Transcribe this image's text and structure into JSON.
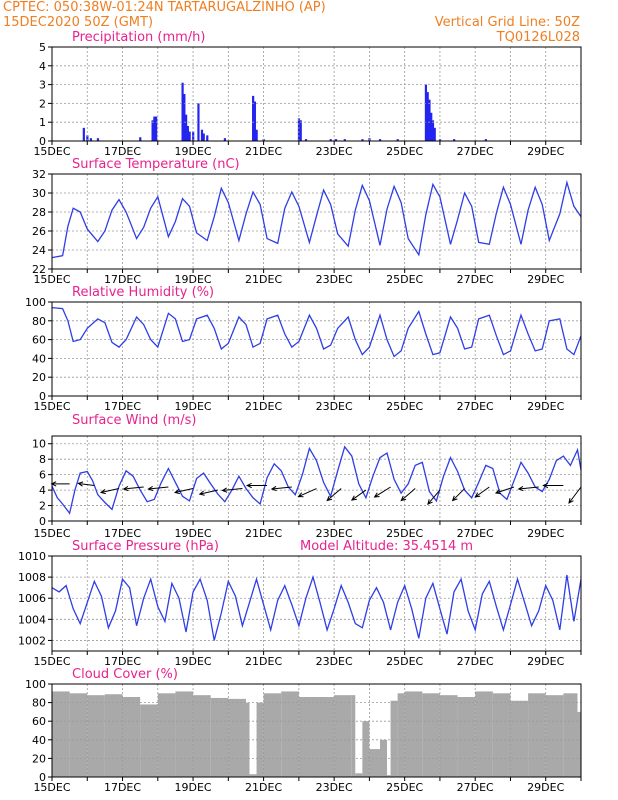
{
  "header": {
    "left_line1": "CPTEC:  050:38W-01:24N  TARTARUGALZINHO (AP)",
    "left_line2": "15DEC2020 50Z (GMT)",
    "right_line2": "Vertical Grid Line: 50Z",
    "right_line3": "TQ0126L028"
  },
  "x_axis": {
    "start_day": 15,
    "end_day": 30,
    "ticks": [
      {
        "day": 15,
        "label": "15DEC"
      },
      {
        "day": 17,
        "label": "17DEC"
      },
      {
        "day": 19,
        "label": "19DEC"
      },
      {
        "day": 21,
        "label": "21DEC"
      },
      {
        "day": 23,
        "label": "23DEC"
      },
      {
        "day": 25,
        "label": "25DEC"
      },
      {
        "day": 27,
        "label": "27DEC"
      },
      {
        "day": 29,
        "label": "29DEC"
      }
    ]
  },
  "chart_data": [
    {
      "id": "precip",
      "type": "bar",
      "title": "Precipitation (mm/h)",
      "ylim": [
        0,
        5
      ],
      "yticks": [
        0,
        1,
        2,
        3,
        4,
        5
      ],
      "grid": true,
      "series": [
        {
          "color": "#2424f0",
          "x": [
            15.9,
            16.0,
            16.1,
            16.3,
            17.5,
            17.85,
            17.9,
            17.95,
            18.7,
            18.75,
            18.8,
            18.85,
            18.9,
            19.0,
            19.15,
            19.25,
            19.3,
            19.4,
            19.9,
            20.7,
            20.75,
            20.8,
            21.0,
            22.0,
            22.05,
            22.2,
            22.9,
            23.05,
            23.3,
            23.8,
            24.0,
            24.3,
            24.8,
            25.6,
            25.65,
            25.7,
            25.75,
            25.8,
            25.85,
            26.0,
            26.4,
            27.3
          ],
          "values": [
            0.7,
            0.3,
            0.15,
            0.15,
            0.2,
            1.1,
            1.3,
            1.3,
            3.1,
            2.5,
            1.4,
            0.8,
            0.5,
            0.5,
            2.0,
            0.6,
            0.4,
            0.3,
            0.15,
            2.4,
            2.1,
            0.6,
            0.1,
            1.2,
            1.1,
            0.1,
            0.1,
            0.1,
            0.1,
            0.1,
            0.15,
            0.1,
            0.1,
            3.0,
            2.6,
            2.2,
            1.5,
            1.1,
            0.7,
            0.1,
            0.1,
            0.1
          ]
        }
      ]
    },
    {
      "id": "temp",
      "type": "line",
      "title": "Surface Temperature (nC)",
      "ylim": [
        22,
        32
      ],
      "yticks": [
        22,
        24,
        26,
        28,
        30,
        32
      ],
      "grid": true,
      "series": [
        {
          "color": "#2f3ee6",
          "x": [
            15.0,
            15.3,
            15.45,
            15.6,
            15.8,
            16.0,
            16.3,
            16.5,
            16.7,
            16.9,
            17.1,
            17.4,
            17.6,
            17.8,
            18.0,
            18.3,
            18.5,
            18.7,
            18.9,
            19.1,
            19.4,
            19.6,
            19.8,
            20.0,
            20.3,
            20.5,
            20.7,
            20.9,
            21.1,
            21.4,
            21.6,
            21.8,
            22.0,
            22.3,
            22.5,
            22.7,
            22.9,
            23.1,
            23.4,
            23.6,
            23.8,
            24.0,
            24.3,
            24.5,
            24.7,
            24.9,
            25.1,
            25.4,
            25.6,
            25.8,
            26.0,
            26.3,
            26.5,
            26.7,
            26.9,
            27.1,
            27.4,
            27.6,
            27.8,
            28.0,
            28.3,
            28.5,
            28.7,
            28.9,
            29.1,
            29.4,
            29.6,
            29.8,
            30.0
          ],
          "values": [
            23.2,
            23.4,
            26.5,
            28.4,
            28.0,
            26.2,
            24.9,
            26.0,
            28.2,
            29.3,
            28.0,
            25.2,
            26.4,
            28.4,
            29.6,
            25.4,
            27.0,
            29.4,
            28.6,
            25.8,
            25.0,
            27.5,
            30.5,
            29.0,
            25.0,
            27.8,
            30.1,
            28.8,
            25.2,
            24.7,
            28.4,
            30.1,
            28.6,
            24.8,
            27.6,
            30.3,
            28.8,
            25.7,
            24.4,
            28.2,
            30.8,
            29.2,
            24.5,
            28.3,
            30.7,
            29.0,
            25.2,
            23.5,
            27.7,
            30.9,
            29.6,
            24.6,
            27.2,
            30.0,
            28.6,
            24.8,
            24.6,
            27.9,
            30.6,
            28.8,
            24.6,
            28.2,
            30.6,
            28.8,
            25.0,
            27.8,
            31.1,
            28.6,
            27.5
          ]
        }
      ]
    },
    {
      "id": "rh",
      "type": "line",
      "title": "Relative Humidity (%)",
      "ylim": [
        0,
        100
      ],
      "yticks": [
        0,
        20,
        40,
        60,
        80,
        100
      ],
      "grid": true,
      "series": [
        {
          "color": "#2f3ee6",
          "x": [
            15.0,
            15.3,
            15.45,
            15.6,
            15.8,
            16.0,
            16.3,
            16.5,
            16.7,
            16.9,
            17.1,
            17.4,
            17.6,
            17.8,
            18.0,
            18.3,
            18.5,
            18.7,
            18.9,
            19.1,
            19.4,
            19.6,
            19.8,
            20.0,
            20.3,
            20.5,
            20.7,
            20.9,
            21.1,
            21.4,
            21.6,
            21.8,
            22.0,
            22.3,
            22.5,
            22.7,
            22.9,
            23.1,
            23.4,
            23.6,
            23.8,
            24.0,
            24.3,
            24.5,
            24.7,
            24.9,
            25.1,
            25.4,
            25.6,
            25.8,
            26.0,
            26.3,
            26.5,
            26.7,
            26.9,
            27.1,
            27.4,
            27.6,
            27.8,
            28.0,
            28.3,
            28.5,
            28.7,
            28.9,
            29.1,
            29.4,
            29.6,
            29.8,
            30.0
          ],
          "values": [
            94,
            93,
            80,
            58,
            60,
            72,
            82,
            78,
            57,
            52,
            60,
            84,
            76,
            60,
            52,
            88,
            82,
            58,
            60,
            82,
            86,
            72,
            50,
            56,
            84,
            76,
            52,
            56,
            82,
            86,
            66,
            52,
            58,
            86,
            72,
            50,
            54,
            72,
            84,
            60,
            44,
            52,
            86,
            60,
            42,
            48,
            72,
            90,
            66,
            44,
            46,
            84,
            72,
            50,
            52,
            82,
            86,
            64,
            44,
            48,
            86,
            66,
            48,
            50,
            80,
            82,
            50,
            44,
            64
          ]
        }
      ]
    },
    {
      "id": "wind",
      "type": "line",
      "title": "Surface Wind (m/s)",
      "ylim": [
        0,
        11
      ],
      "yticks": [
        0,
        2,
        4,
        6,
        8,
        10
      ],
      "grid": true,
      "series": [
        {
          "color": "#2f3ee6",
          "x": [
            15.0,
            15.15,
            15.3,
            15.5,
            15.65,
            15.8,
            16.0,
            16.15,
            16.3,
            16.5,
            16.7,
            16.9,
            17.1,
            17.3,
            17.5,
            17.7,
            17.9,
            18.1,
            18.3,
            18.5,
            18.7,
            18.9,
            19.1,
            19.3,
            19.5,
            19.7,
            19.9,
            20.1,
            20.3,
            20.5,
            20.7,
            20.9,
            21.1,
            21.3,
            21.5,
            21.7,
            21.9,
            22.1,
            22.3,
            22.5,
            22.7,
            22.9,
            23.1,
            23.3,
            23.5,
            23.7,
            23.9,
            24.1,
            24.3,
            24.5,
            24.7,
            24.9,
            25.1,
            25.3,
            25.5,
            25.7,
            25.9,
            26.1,
            26.3,
            26.5,
            26.7,
            26.9,
            27.1,
            27.3,
            27.5,
            27.7,
            27.9,
            28.1,
            28.3,
            28.5,
            28.7,
            28.9,
            29.1,
            29.3,
            29.5,
            29.7,
            29.9,
            30.0
          ],
          "values": [
            4.5,
            3.0,
            2.2,
            1.0,
            4.0,
            6.2,
            6.4,
            5.2,
            3.4,
            2.4,
            1.5,
            4.5,
            6.5,
            5.8,
            4.0,
            2.5,
            2.8,
            5.0,
            6.8,
            5.0,
            3.2,
            2.6,
            5.5,
            6.2,
            4.8,
            3.5,
            2.5,
            4.0,
            5.8,
            4.2,
            3.0,
            2.2,
            5.6,
            7.4,
            6.5,
            4.4,
            3.4,
            6.0,
            9.4,
            7.8,
            5.0,
            3.2,
            6.5,
            9.6,
            8.4,
            4.8,
            3.0,
            5.8,
            8.2,
            8.8,
            5.4,
            3.6,
            4.8,
            7.2,
            7.6,
            3.8,
            2.6,
            5.8,
            8.2,
            6.4,
            4.0,
            3.0,
            5.0,
            7.2,
            6.8,
            3.6,
            2.8,
            5.2,
            7.6,
            6.2,
            4.4,
            3.8,
            5.4,
            7.8,
            8.4,
            7.2,
            9.2,
            6.6
          ]
        }
      ],
      "arrows": {
        "x": [
          15.5,
          16.2,
          16.9,
          17.6,
          18.3,
          19.0,
          19.7,
          20.4,
          21.1,
          21.8,
          22.5,
          23.2,
          23.9,
          24.6,
          25.3,
          26.0,
          26.7,
          27.4,
          28.1,
          28.8,
          29.5,
          30.0
        ],
        "y": [
          4.8,
          4.6,
          4.2,
          4.4,
          4.4,
          4.2,
          4.0,
          4.2,
          4.6,
          4.4,
          4.2,
          4.2,
          4.0,
          4.4,
          4.2,
          4.0,
          4.2,
          4.4,
          4.4,
          4.4,
          4.6,
          4.4
        ],
        "u": [
          -0.9,
          -0.8,
          -0.9,
          -1.0,
          -1.0,
          -0.9,
          -0.9,
          -1.0,
          -1.0,
          -1.0,
          -0.9,
          -0.7,
          -0.7,
          -0.8,
          -0.7,
          -0.6,
          -0.6,
          -0.7,
          -0.9,
          -1.0,
          -1.0,
          -0.6
        ],
        "v": [
          0.0,
          0.1,
          -0.2,
          -0.1,
          -0.1,
          -0.2,
          -0.2,
          -0.1,
          0.0,
          -0.1,
          -0.4,
          -0.6,
          -0.5,
          -0.5,
          -0.6,
          -0.7,
          -0.6,
          -0.5,
          -0.3,
          -0.1,
          0.0,
          -0.8
        ]
      }
    },
    {
      "id": "pres",
      "type": "line",
      "title": "Surface Pressure (hPa)",
      "annotation": "Model Altitude: 35.4514  m",
      "ylim": [
        1001,
        1010
      ],
      "yticks": [
        1002,
        1004,
        1006,
        1008,
        1010
      ],
      "grid": true,
      "series": [
        {
          "color": "#2f3ee6",
          "x": [
            15.0,
            15.2,
            15.4,
            15.6,
            15.8,
            16.0,
            16.2,
            16.4,
            16.6,
            16.8,
            17.0,
            17.2,
            17.4,
            17.6,
            17.8,
            18.0,
            18.2,
            18.4,
            18.6,
            18.8,
            19.0,
            19.2,
            19.4,
            19.6,
            19.8,
            20.0,
            20.2,
            20.4,
            20.6,
            20.8,
            21.0,
            21.2,
            21.4,
            21.6,
            21.8,
            22.0,
            22.2,
            22.4,
            22.6,
            22.8,
            23.0,
            23.2,
            23.4,
            23.6,
            23.8,
            24.0,
            24.2,
            24.4,
            24.6,
            24.8,
            25.0,
            25.2,
            25.4,
            25.6,
            25.8,
            26.0,
            26.2,
            26.4,
            26.6,
            26.8,
            27.0,
            27.2,
            27.4,
            27.6,
            27.8,
            28.0,
            28.2,
            28.4,
            28.6,
            28.8,
            29.0,
            29.2,
            29.4,
            29.6,
            29.8,
            30.0
          ],
          "values": [
            1007.0,
            1006.6,
            1007.2,
            1005.0,
            1003.6,
            1005.6,
            1007.6,
            1006.2,
            1003.2,
            1004.8,
            1007.8,
            1007.0,
            1003.4,
            1006.0,
            1007.8,
            1005.2,
            1003.8,
            1007.4,
            1006.0,
            1002.8,
            1006.6,
            1007.8,
            1005.8,
            1002.0,
            1004.6,
            1007.6,
            1006.2,
            1003.4,
            1005.6,
            1007.8,
            1005.4,
            1003.0,
            1005.8,
            1007.2,
            1005.4,
            1003.4,
            1006.0,
            1008.0,
            1005.6,
            1003.0,
            1005.0,
            1007.2,
            1005.6,
            1003.6,
            1003.2,
            1005.8,
            1007.0,
            1005.6,
            1003.0,
            1005.6,
            1007.2,
            1005.0,
            1002.2,
            1006.0,
            1007.4,
            1005.0,
            1002.6,
            1006.6,
            1007.8,
            1004.8,
            1003.0,
            1006.4,
            1007.6,
            1005.2,
            1003.0,
            1005.4,
            1007.8,
            1005.6,
            1003.4,
            1004.8,
            1007.2,
            1005.8,
            1003.0,
            1008.2,
            1003.8,
            1007.8
          ]
        }
      ]
    },
    {
      "id": "cloud",
      "type": "bar",
      "title": "Cloud Cover (%)",
      "ylim": [
        0,
        100
      ],
      "yticks": [
        0,
        20,
        40,
        60,
        80,
        100
      ],
      "grid": true,
      "series": [
        {
          "color": "#a9a9a9",
          "x": [
            15.0,
            15.5,
            16.0,
            16.5,
            17.0,
            17.5,
            18.0,
            18.5,
            19.0,
            19.5,
            20.0,
            20.5,
            20.6,
            20.8,
            21.0,
            21.5,
            22.0,
            22.5,
            23.0,
            23.5,
            23.6,
            23.8,
            24.0,
            24.3,
            24.5,
            24.6,
            24.8,
            25.0,
            25.5,
            26.0,
            26.5,
            27.0,
            27.5,
            28.0,
            28.5,
            29.0,
            29.5,
            29.9
          ],
          "values": [
            92,
            90,
            88,
            89,
            86,
            78,
            90,
            92,
            88,
            85,
            84,
            80,
            3,
            80,
            90,
            92,
            86,
            86,
            88,
            88,
            4,
            60,
            30,
            40,
            2,
            82,
            90,
            92,
            90,
            88,
            86,
            92,
            90,
            82,
            90,
            88,
            90,
            70
          ]
        }
      ]
    }
  ]
}
